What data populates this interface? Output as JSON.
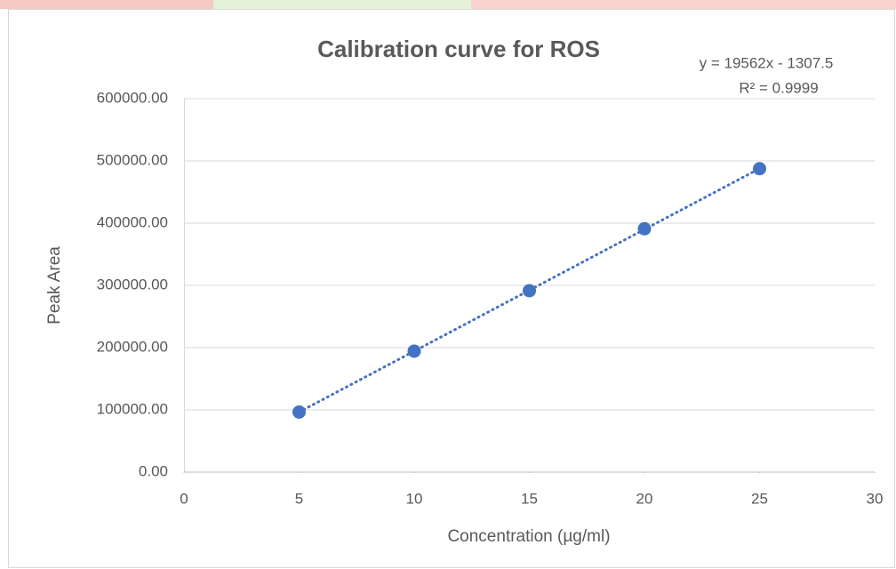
{
  "chart_data": {
    "type": "scatter",
    "title": "Calibration curve for ROS",
    "x_label": "Concentration (µg/ml)",
    "y_label": "Peak Area",
    "x": [
      5,
      10,
      15,
      20,
      25
    ],
    "series": [
      {
        "name": "ROS",
        "color": "#4472c4",
        "values": [
          96500,
          194300,
          291500,
          391000,
          487500
        ]
      }
    ],
    "xlim": [
      0,
      30
    ],
    "xticks": [
      0,
      5,
      10,
      15,
      20,
      25,
      30
    ],
    "ylim": [
      0,
      600000
    ],
    "yticks": [
      {
        "value": 0,
        "label": "0.00"
      },
      {
        "value": 100000,
        "label": "100000.00"
      },
      {
        "value": 200000,
        "label": "200000.00"
      },
      {
        "value": 300000,
        "label": "300000.00"
      },
      {
        "value": 400000,
        "label": "400000.00"
      },
      {
        "value": 500000,
        "label": "500000.00"
      },
      {
        "value": 600000,
        "label": "600000.00"
      }
    ],
    "grid": true,
    "trendline": {
      "slope": 19562,
      "intercept": -1307.5,
      "equation": "y = 19562x - 1307.5",
      "r_squared": "R² = 0.9999"
    }
  }
}
